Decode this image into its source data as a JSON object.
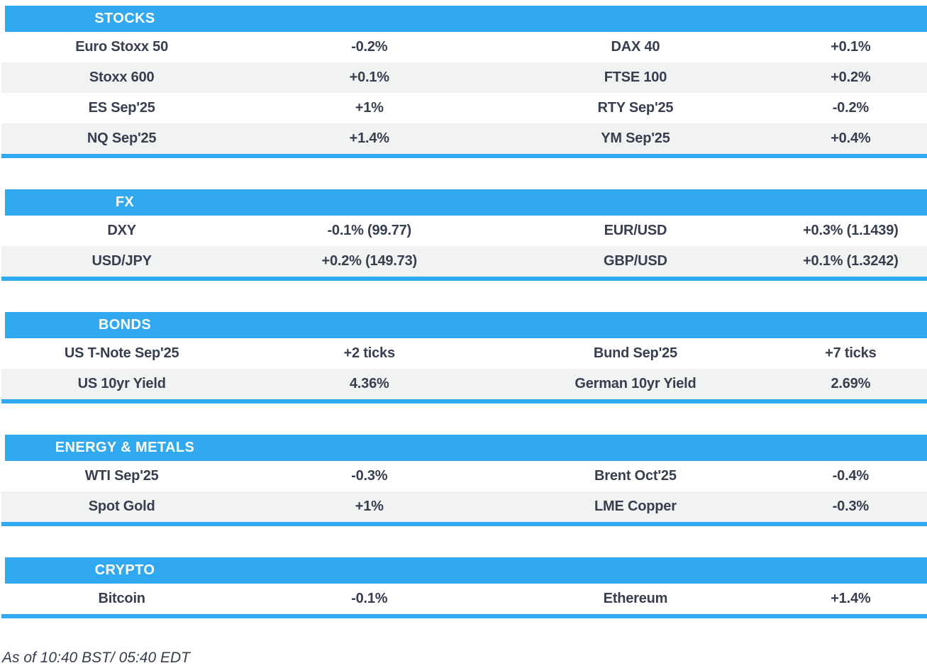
{
  "colors": {
    "accent": "#31a9f0",
    "header_text": "#ffffff",
    "body_text": "#373e4d",
    "row_alt": "#f1f2f2"
  },
  "footer": {
    "as_of": "As of 10:40 BST/ 05:40 EDT"
  },
  "chart_data": [
    {
      "type": "table",
      "title": "STOCKS",
      "rows": [
        [
          "Euro Stoxx 50",
          "-0.2%",
          "DAX 40",
          "+0.1%"
        ],
        [
          "Stoxx 600",
          "+0.1%",
          "FTSE 100",
          "+0.2%"
        ],
        [
          "ES Sep'25",
          "+1%",
          "RTY Sep'25",
          "-0.2%"
        ],
        [
          "NQ Sep'25",
          "+1.4%",
          "YM Sep'25",
          "+0.4%"
        ]
      ]
    },
    {
      "type": "table",
      "title": "FX",
      "rows": [
        [
          "DXY",
          "-0.1% (99.77)",
          "EUR/USD",
          "+0.3% (1.1439)"
        ],
        [
          "USD/JPY",
          "+0.2% (149.73)",
          "GBP/USD",
          "+0.1% (1.3242)"
        ]
      ]
    },
    {
      "type": "table",
      "title": "BONDS",
      "rows": [
        [
          "US T-Note Sep'25",
          "+2 ticks",
          "Bund Sep'25",
          "+7 ticks"
        ],
        [
          "US 10yr Yield",
          "4.36%",
          "German 10yr Yield",
          "2.69%"
        ]
      ]
    },
    {
      "type": "table",
      "title": "ENERGY & METALS",
      "rows": [
        [
          "WTI Sep'25",
          "-0.3%",
          "Brent Oct'25",
          "-0.4%"
        ],
        [
          "Spot Gold",
          "+1%",
          "LME Copper",
          "-0.3%"
        ]
      ]
    },
    {
      "type": "table",
      "title": "CRYPTO",
      "rows": [
        [
          "Bitcoin",
          "-0.1%",
          "Ethereum",
          "+1.4%"
        ]
      ]
    }
  ]
}
